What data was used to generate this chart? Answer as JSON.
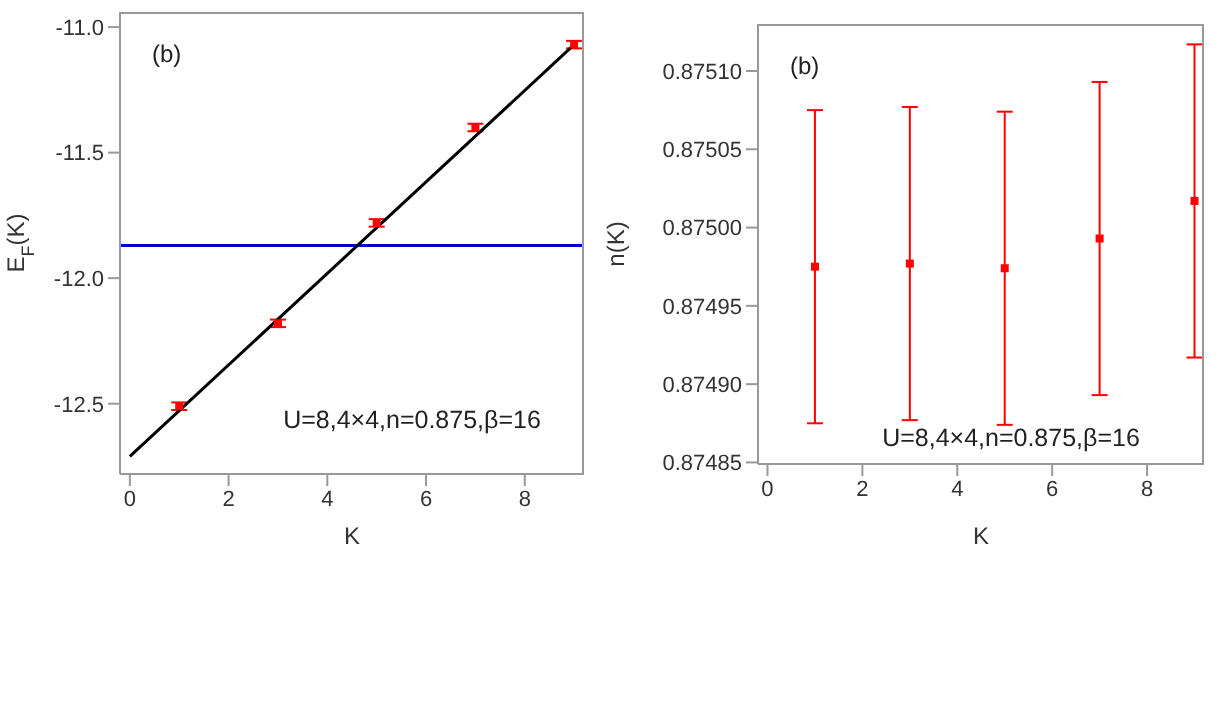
{
  "chart_data": [
    {
      "type": "scatter",
      "xlabel": "K",
      "ylabel": "E$_{F}$(K)",
      "annotations": [
        "(b)",
        "U=8,4×4,n=0.875,β=16"
      ],
      "xlim": [
        -0.2,
        9.2
      ],
      "xticks": [
        0,
        2,
        4,
        6,
        8
      ],
      "ylim": [
        -12.78,
        -10.94
      ],
      "yticks": [
        -12.5,
        {
          "value": -12,
          "label": "-12.0"
        },
        -11.5,
        {
          "value": -11,
          "label": "-11.0"
        }
      ],
      "marker": "square",
      "grid": false,
      "series": [
        {
          "color": "#ff0000",
          "x": [
            1,
            3,
            5,
            7,
            9
          ],
          "values": [
            -12.51,
            -12.18,
            -11.78,
            -11.4,
            -11.07
          ],
          "errors": [
            0.015,
            0.015,
            0.015,
            0.015,
            0.015
          ]
        },
        {
          "type": "line",
          "marker": "none",
          "color": "#000000",
          "x": [
            0,
            9
          ],
          "values": [
            -12.71,
            -11.07
          ]
        }
      ],
      "ref_lines": [
        {
          "axis": "y",
          "value": -11.87,
          "color": "#0000cc"
        }
      ]
    },
    {
      "type": "scatter",
      "xlabel": "K",
      "ylabel": "n(K)",
      "annotations": [
        "(b)",
        "U=8,4×4,n=0.875,β=16"
      ],
      "xlim": [
        -0.2,
        9.2
      ],
      "xticks": [
        0,
        2,
        4,
        6,
        8
      ],
      "ylim": [
        0.874849,
        0.87513
      ],
      "yticks": [
        0.87485,
        {
          "value": 0.8749,
          "label": "0.87490"
        },
        0.87495,
        {
          "value": 0.875,
          "label": "0.87500"
        },
        0.87505,
        {
          "value": 0.8751,
          "label": "0.87510"
        }
      ],
      "marker": "square",
      "grid": false,
      "series": [
        {
          "color": "#ff0000",
          "x": [
            1,
            3,
            5,
            7,
            9
          ],
          "values": [
            0.874975,
            0.874977,
            0.874974,
            0.874993,
            0.875017
          ],
          "errors": [
            0.0001,
            0.0001,
            0.0001,
            0.0001,
            0.0001
          ]
        }
      ]
    }
  ]
}
